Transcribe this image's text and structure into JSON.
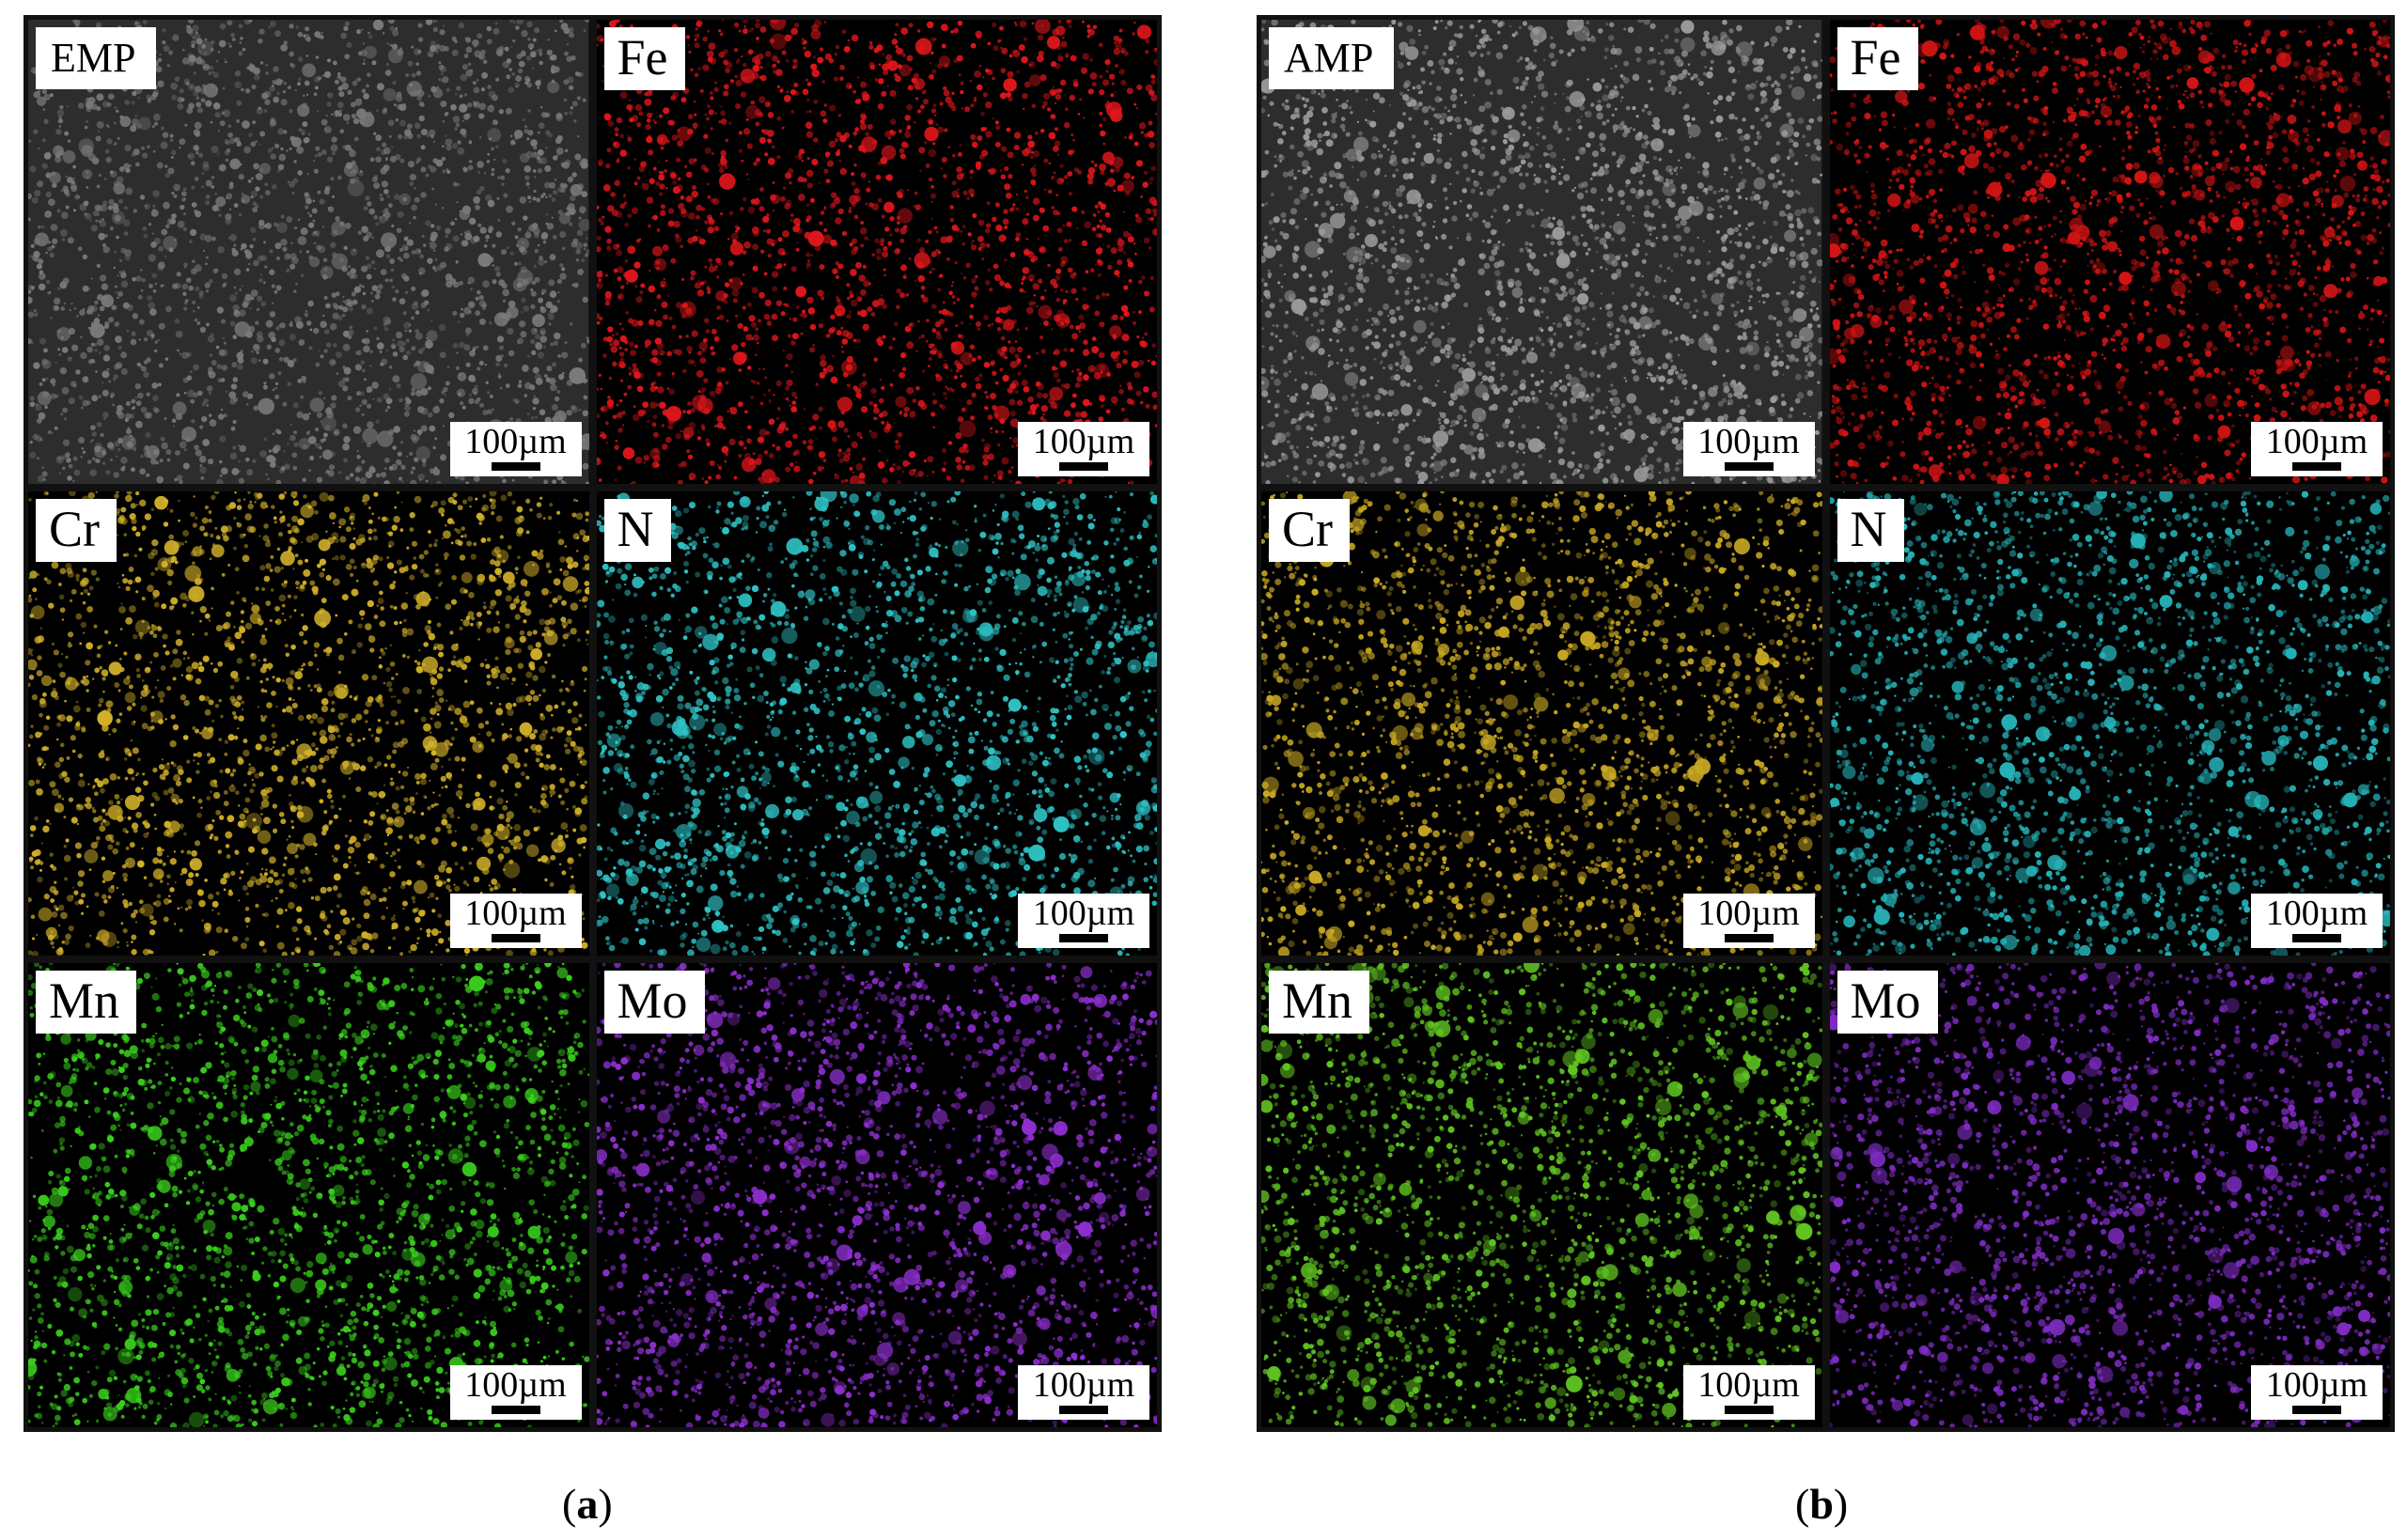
{
  "panels": [
    {
      "id": "a",
      "caption_open": "(",
      "caption_letter": "a",
      "caption_close": ")",
      "tiles": [
        {
          "label": "EMP",
          "kind": "sem",
          "color": "#7a7a7a",
          "scale": "100µm"
        },
        {
          "label": "Fe",
          "kind": "map",
          "color": "#e0161b",
          "scale": "100µm"
        },
        {
          "label": "Cr",
          "kind": "map",
          "color": "#d2b02a",
          "scale": "100µm"
        },
        {
          "label": "N",
          "kind": "map",
          "color": "#2fc3c6",
          "scale": "100µm"
        },
        {
          "label": "Mn",
          "kind": "map",
          "color": "#39d11c",
          "scale": "100µm"
        },
        {
          "label": "Mo",
          "kind": "map",
          "color": "#8e2fd0",
          "scale": "100µm"
        }
      ]
    },
    {
      "id": "b",
      "caption_open": "(",
      "caption_letter": "b",
      "caption_close": ")",
      "tiles": [
        {
          "label": "AMP",
          "kind": "sem",
          "color": "#9a9a9a",
          "scale": "100µm"
        },
        {
          "label": "Fe",
          "kind": "map",
          "color": "#d41414",
          "scale": "100µm"
        },
        {
          "label": "Cr",
          "kind": "map",
          "color": "#c9a823",
          "scale": "100µm"
        },
        {
          "label": "N",
          "kind": "map",
          "color": "#26b3b8",
          "scale": "100µm"
        },
        {
          "label": "Mn",
          "kind": "map",
          "color": "#5fc421",
          "scale": "100µm"
        },
        {
          "label": "Mo",
          "kind": "map",
          "color": "#7e2cc2",
          "scale": "100µm"
        }
      ]
    }
  ]
}
